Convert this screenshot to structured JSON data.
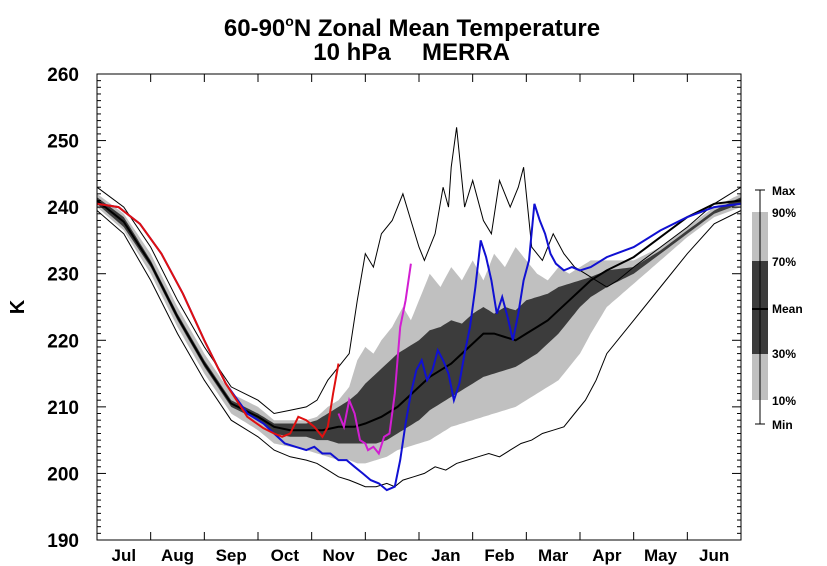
{
  "chart_data": {
    "type": "area",
    "title_main": "60-90",
    "title_degree": "o",
    "title_rest": "N Zonal Mean Temperature",
    "subtitle_left": "10 hPa",
    "subtitle_right": "MERRA",
    "ylabel": "K",
    "ylim": [
      190,
      260
    ],
    "yticks": [
      190,
      200,
      210,
      220,
      230,
      240,
      250,
      260
    ],
    "months": [
      "Jul",
      "Aug",
      "Sep",
      "Oct",
      "Nov",
      "Dec",
      "Jan",
      "Feb",
      "Mar",
      "Apr",
      "May",
      "Jun"
    ],
    "xlim": [
      0,
      12
    ],
    "legend": {
      "labels": [
        "Max",
        "90%",
        "70%",
        "Mean",
        "30%",
        "10%",
        "Min"
      ]
    },
    "colors": {
      "band_outer": "#c0c0c0",
      "band_inner": "#3c3c3c",
      "mean": "#000000",
      "extreme": "#000000",
      "red": "#e01010",
      "magenta": "#d21ed2",
      "blue": "#1010d2"
    },
    "series": {
      "max": {
        "x": [
          0,
          0.5,
          1,
          1.5,
          2,
          2.5,
          3,
          3.3,
          3.6,
          3.9,
          4.1,
          4.3,
          4.5,
          4.7,
          4.85,
          5.0,
          5.15,
          5.3,
          5.5,
          5.7,
          5.85,
          6.0,
          6.1,
          6.3,
          6.45,
          6.55,
          6.6,
          6.7,
          6.85,
          7.0,
          7.2,
          7.35,
          7.5,
          7.7,
          7.85,
          7.95,
          8.1,
          8.3,
          8.5,
          8.7,
          8.9,
          9.1,
          9.3,
          9.5,
          9.7,
          10.0,
          10.5,
          11,
          11.5,
          12
        ],
        "y": [
          243,
          240,
          234,
          226,
          219,
          213,
          211,
          209,
          209.5,
          210,
          211,
          214,
          216,
          218,
          226,
          233,
          231,
          236,
          238,
          242,
          238,
          234,
          232,
          236,
          243,
          240,
          246,
          252,
          240,
          244,
          238,
          236,
          244,
          240,
          243,
          246,
          234,
          232,
          236,
          233,
          231,
          230,
          229,
          228,
          229,
          231,
          234,
          237,
          240.5,
          243
        ]
      },
      "p90": {
        "x": [
          0,
          0.5,
          1,
          1.5,
          2,
          2.5,
          3,
          3.3,
          3.6,
          3.9,
          4.1,
          4.3,
          4.5,
          4.7,
          4.85,
          5.0,
          5.15,
          5.3,
          5.5,
          5.7,
          5.85,
          6.0,
          6.2,
          6.4,
          6.6,
          6.8,
          7.0,
          7.2,
          7.4,
          7.6,
          7.8,
          8.0,
          8.2,
          8.4,
          8.6,
          8.8,
          9.0,
          9.2,
          9.5,
          10.0,
          10.5,
          11,
          11.5,
          12
        ],
        "y": [
          242,
          239,
          233,
          225,
          218,
          212,
          210,
          208,
          208,
          208,
          208.5,
          210,
          211,
          213,
          217,
          219,
          218,
          220,
          222,
          225,
          223,
          226,
          230,
          228,
          231,
          229,
          232,
          229,
          233,
          231,
          234,
          232,
          230,
          229,
          231,
          230,
          231,
          232,
          232,
          232,
          234,
          237,
          240,
          242
        ]
      },
      "p70": {
        "x": [
          0,
          0.5,
          1,
          1.5,
          2,
          2.5,
          3,
          3.3,
          3.6,
          3.9,
          4.1,
          4.3,
          4.5,
          4.7,
          4.85,
          5.0,
          5.2,
          5.4,
          5.6,
          5.8,
          6.0,
          6.2,
          6.4,
          6.6,
          6.8,
          7.0,
          7.2,
          7.4,
          7.6,
          7.8,
          8.0,
          8.2,
          8.4,
          8.6,
          8.8,
          9.0,
          9.2,
          9.5,
          10.0,
          10.5,
          11,
          11.5,
          12
        ],
        "y": [
          241.5,
          238.5,
          232,
          224,
          217,
          211,
          209,
          207.5,
          207.5,
          207.5,
          208,
          209,
          210,
          211,
          212,
          213.5,
          215,
          216.5,
          218,
          219,
          220,
          221.5,
          222,
          223,
          222.5,
          224,
          225,
          224,
          225,
          224.5,
          226,
          226.5,
          227,
          228,
          228.5,
          229,
          229.5,
          230.5,
          231,
          233.5,
          236.5,
          239.5,
          241.5
        ]
      },
      "p30": {
        "x": [
          0,
          0.5,
          1,
          1.5,
          2,
          2.5,
          3,
          3.3,
          3.6,
          3.9,
          4.1,
          4.3,
          4.5,
          4.7,
          4.85,
          5.0,
          5.2,
          5.4,
          5.6,
          5.8,
          6.0,
          6.2,
          6.4,
          6.6,
          6.8,
          7.0,
          7.2,
          7.4,
          7.6,
          7.8,
          8.0,
          8.2,
          8.4,
          8.6,
          8.8,
          9.0,
          9.2,
          9.5,
          10.0,
          10.5,
          11,
          11.5,
          12
        ],
        "y": [
          240.5,
          237,
          231,
          223,
          216,
          210,
          208,
          206,
          205.5,
          205.5,
          205,
          205,
          204.5,
          204.5,
          204.5,
          204.5,
          204.5,
          205,
          206,
          207,
          208,
          209.5,
          210.5,
          211.5,
          212.5,
          213.5,
          214.5,
          215,
          215.5,
          216,
          217,
          218,
          219.5,
          221,
          223,
          225,
          226.5,
          228,
          230,
          233,
          236,
          239,
          240.5
        ]
      },
      "p10": {
        "x": [
          0,
          0.5,
          1,
          1.5,
          2,
          2.5,
          3,
          3.3,
          3.6,
          3.9,
          4.1,
          4.3,
          4.5,
          4.7,
          4.85,
          5.0,
          5.2,
          5.4,
          5.6,
          5.8,
          6.0,
          6.2,
          6.4,
          6.6,
          6.8,
          7.0,
          7.2,
          7.4,
          7.6,
          7.8,
          8.0,
          8.2,
          8.4,
          8.6,
          8.8,
          9.0,
          9.2,
          9.5,
          10.0,
          10.5,
          11,
          11.5,
          12
        ],
        "y": [
          240,
          236.5,
          230,
          222,
          215,
          209,
          206.5,
          204.5,
          204,
          203.5,
          203,
          202.5,
          202,
          202,
          201.5,
          201.5,
          202,
          202.5,
          203.5,
          204,
          204.5,
          205,
          206,
          207,
          207.5,
          208,
          208.5,
          209,
          209.5,
          210,
          211,
          212,
          213,
          214,
          216,
          218,
          221,
          225,
          228.5,
          232,
          235.5,
          238.5,
          240
        ]
      },
      "min": {
        "x": [
          0,
          0.5,
          1,
          1.5,
          2,
          2.5,
          3,
          3.3,
          3.6,
          3.9,
          4.1,
          4.3,
          4.5,
          4.7,
          4.85,
          5.0,
          5.2,
          5.4,
          5.55,
          5.7,
          5.9,
          6.1,
          6.3,
          6.5,
          6.7,
          6.9,
          7.1,
          7.3,
          7.5,
          7.7,
          7.9,
          8.1,
          8.3,
          8.5,
          8.7,
          8.9,
          9.1,
          9.3,
          9.5,
          10.0,
          10.5,
          11,
          11.5,
          12
        ],
        "y": [
          239.5,
          236,
          229,
          221,
          214,
          208,
          205.5,
          203.5,
          202.5,
          202,
          201.5,
          200.5,
          199.5,
          199,
          198.5,
          198,
          198,
          198.5,
          198,
          199,
          199.5,
          200,
          201,
          200.5,
          201.5,
          202,
          202.5,
          203,
          202.5,
          203.5,
          204.5,
          205,
          206,
          206.5,
          207,
          209,
          211,
          214,
          218,
          223,
          228,
          233,
          237.5,
          239.5
        ]
      },
      "mean": {
        "x": [
          0,
          0.5,
          1,
          1.5,
          2,
          2.5,
          3,
          3.3,
          3.6,
          3.9,
          4.2,
          4.5,
          4.8,
          5.0,
          5.3,
          5.6,
          5.8,
          6.0,
          6.2,
          6.4,
          6.6,
          6.8,
          7.0,
          7.2,
          7.4,
          7.6,
          7.8,
          8.0,
          8.2,
          8.4,
          8.6,
          8.8,
          9.0,
          9.2,
          9.5,
          10.0,
          10.5,
          11,
          11.5,
          12
        ],
        "y": [
          241,
          237.8,
          231.5,
          223.5,
          216.5,
          210.5,
          208.5,
          207,
          206.5,
          206.5,
          206.5,
          207,
          207,
          207.5,
          208.5,
          210,
          211.5,
          213,
          214.5,
          215.5,
          216.5,
          218,
          219.5,
          221,
          221,
          220.5,
          220,
          221,
          222,
          223,
          224.5,
          226,
          227.5,
          229,
          230.5,
          232.5,
          235.5,
          238.5,
          240.5,
          241
        ]
      },
      "red": {
        "x": [
          0,
          0.4,
          0.8,
          1.2,
          1.6,
          2.0,
          2.4,
          2.8,
          3.1,
          3.3,
          3.45,
          3.6,
          3.75,
          3.9,
          4.05,
          4.2,
          4.3,
          4.4,
          4.5
        ],
        "y": [
          240.5,
          240,
          237.5,
          233,
          227,
          220,
          213.5,
          208.5,
          206.8,
          206,
          205.5,
          206,
          208.5,
          208,
          207,
          205.5,
          207,
          212,
          216.5
        ]
      },
      "magenta": {
        "x": [
          4.5,
          4.6,
          4.7,
          4.8,
          4.9,
          5.0,
          5.05,
          5.15,
          5.25,
          5.35,
          5.45,
          5.55,
          5.65,
          5.75,
          5.85
        ],
        "y": [
          209,
          207,
          211,
          209,
          205,
          204.5,
          203.5,
          204,
          203,
          205.5,
          206,
          212,
          222,
          226,
          231.5
        ]
      },
      "blue": {
        "x": [
          0,
          0.4,
          0.8,
          1.2,
          1.6,
          2.0,
          2.4,
          2.8,
          3.1,
          3.3,
          3.5,
          3.7,
          3.9,
          4.05,
          4.2,
          4.35,
          4.5,
          4.65,
          4.8,
          4.95,
          5.1,
          5.25,
          5.4,
          5.55,
          5.65,
          5.75,
          5.85,
          5.95,
          6.05,
          6.15,
          6.25,
          6.35,
          6.45,
          6.55,
          6.65,
          6.75,
          6.85,
          6.95,
          7.05,
          7.15,
          7.25,
          7.35,
          7.45,
          7.55,
          7.65,
          7.75,
          7.85,
          7.95,
          8.05,
          8.15,
          8.25,
          8.35,
          8.45,
          8.55,
          8.7,
          8.85,
          9.0,
          9.2,
          9.5,
          10.0,
          10.5,
          11,
          11.5,
          12
        ],
        "y": [
          240.5,
          240,
          237.5,
          233,
          227,
          220,
          213.5,
          209,
          207.5,
          206,
          204.5,
          204,
          203.5,
          204,
          203,
          203,
          202,
          202,
          201,
          200,
          199,
          198.5,
          197.5,
          198,
          202,
          207.5,
          212,
          215.5,
          217,
          214,
          215.5,
          218.5,
          217,
          215,
          211,
          213.5,
          218,
          222,
          228,
          235,
          232.5,
          229,
          224,
          226.5,
          223.5,
          220,
          224,
          229,
          232,
          240.5,
          238,
          236,
          233,
          231.5,
          230.5,
          231,
          230.5,
          231,
          232.5,
          234,
          236.5,
          238.5,
          240,
          240.5
        ]
      }
    }
  }
}
